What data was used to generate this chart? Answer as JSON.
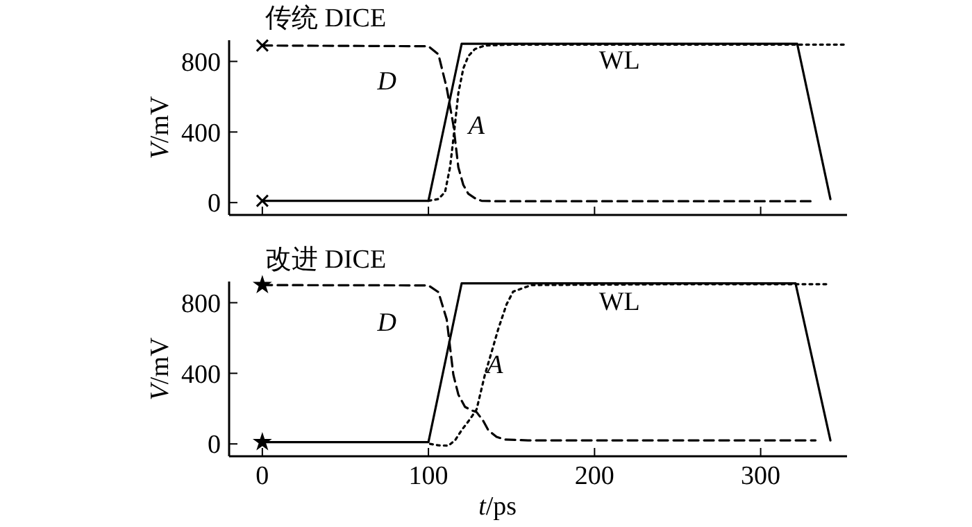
{
  "chart_data": [
    {
      "type": "line",
      "title": "传统 DICE",
      "ylabel": "V/mV",
      "xlim": [
        -20,
        352
      ],
      "xticks": [
        0,
        100,
        200,
        300
      ],
      "ylim": [
        -70,
        920
      ],
      "yticks": [
        0,
        400,
        800
      ],
      "tick_labels": "y",
      "grid": false,
      "series": [
        {
          "name": "D",
          "color": "#000000",
          "line_style": "dashed",
          "marker": "none",
          "x": [
            0,
            100,
            106,
            111,
            115,
            118,
            121,
            124,
            128,
            132,
            140,
            200,
            333
          ],
          "values": [
            890,
            886,
            840,
            650,
            440,
            200,
            100,
            50,
            25,
            10,
            8,
            8,
            8
          ]
        },
        {
          "name": "A",
          "color": "#000000",
          "line_style": "dotted",
          "marker": "none",
          "x": [
            100,
            106,
            110,
            113,
            115,
            118,
            121,
            124,
            128,
            134,
            150,
            250,
            352
          ],
          "values": [
            10,
            20,
            60,
            200,
            360,
            620,
            760,
            830,
            870,
            890,
            895,
            895,
            895
          ]
        },
        {
          "name": "WL",
          "color": "#000000",
          "line_style": "solid",
          "marker": "none",
          "x": [
            0,
            100,
            120,
            322,
            342
          ],
          "values": [
            10,
            10,
            900,
            900,
            20
          ]
        },
        {
          "type": "scatter",
          "color": "#000000",
          "marker": "cross",
          "x": [
            0,
            0
          ],
          "values": [
            890,
            10
          ]
        }
      ]
    },
    {
      "type": "line",
      "title": "改进 DICE",
      "xlabel": "t/ps",
      "ylabel": "V/mV",
      "xlim": [
        -20,
        352
      ],
      "xticks": [
        0,
        100,
        200,
        300
      ],
      "ylim": [
        -70,
        920
      ],
      "yticks": [
        0,
        400,
        800
      ],
      "grid": false,
      "series": [
        {
          "name": "D",
          "color": "#000000",
          "line_style": "dashed",
          "marker": "none",
          "x": [
            0,
            100,
            106,
            111,
            115,
            118,
            122,
            126,
            129,
            133,
            136,
            141,
            146,
            160,
            333
          ],
          "values": [
            900,
            898,
            860,
            706,
            392,
            280,
            210,
            190,
            180,
            130,
            78,
            40,
            25,
            20,
            20
          ]
        },
        {
          "name": "A",
          "color": "#000000",
          "line_style": "dotted",
          "marker": "none",
          "x": [
            101,
            106,
            112,
            116,
            120,
            125,
            129,
            134,
            138,
            142,
            147,
            151,
            162,
            250,
            341
          ],
          "values": [
            0,
            -8,
            -10,
            20,
            78,
            140,
            196,
            392,
            520,
            650,
            790,
            863,
            900,
            905,
            905
          ]
        },
        {
          "name": "WL",
          "color": "#000000",
          "line_style": "solid",
          "marker": "none",
          "x": [
            0,
            100,
            120,
            321,
            342
          ],
          "values": [
            10,
            10,
            910,
            910,
            20
          ]
        },
        {
          "type": "scatter",
          "color": "#000000",
          "marker": "star",
          "x": [
            0,
            0
          ],
          "values": [
            900,
            10
          ]
        }
      ]
    }
  ]
}
